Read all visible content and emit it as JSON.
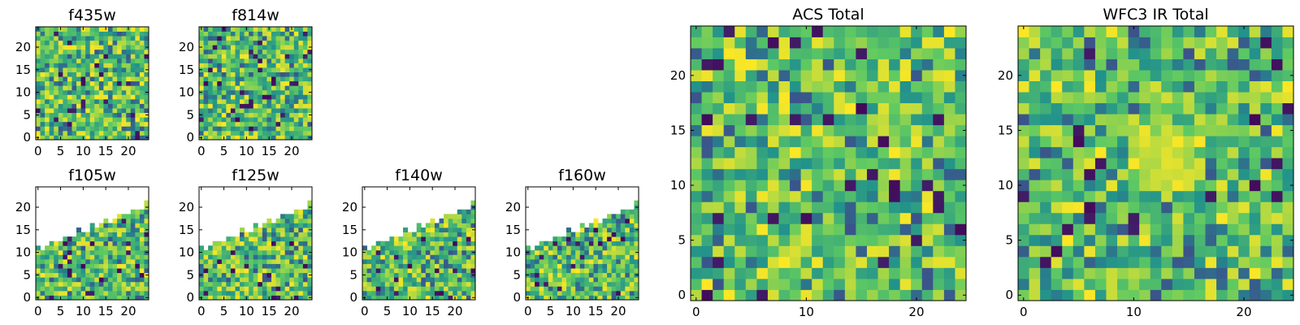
{
  "chart_data": [
    {
      "type": "heatmap",
      "title": "f435w",
      "grid": [
        25,
        25
      ],
      "xticks": [
        "0",
        "5",
        "10",
        "15",
        "20"
      ],
      "yticks": [
        "0",
        "5",
        "10",
        "15",
        "20"
      ],
      "xlim": [
        0,
        25
      ],
      "ylim": [
        0,
        25
      ],
      "colormap": "viridis",
      "coverage": "full"
    },
    {
      "type": "heatmap",
      "title": "f814w",
      "grid": [
        25,
        25
      ],
      "xticks": [
        "0",
        "5",
        "10",
        "15",
        "20"
      ],
      "yticks": [
        "0",
        "5",
        "10",
        "15",
        "20"
      ],
      "xlim": [
        0,
        25
      ],
      "ylim": [
        0,
        25
      ],
      "colormap": "viridis",
      "coverage": "full"
    },
    {
      "type": "heatmap",
      "title": "f105w",
      "grid": [
        25,
        25
      ],
      "xticks": [
        "0",
        "5",
        "10",
        "15",
        "20"
      ],
      "yticks": [
        "0",
        "5",
        "10",
        "15",
        "20"
      ],
      "xlim": [
        0,
        25
      ],
      "ylim": [
        0,
        25
      ],
      "colormap": "viridis",
      "coverage": "lower-diagonal"
    },
    {
      "type": "heatmap",
      "title": "f125w",
      "grid": [
        25,
        25
      ],
      "xticks": [
        "0",
        "5",
        "10",
        "15",
        "20"
      ],
      "yticks": [
        "0",
        "5",
        "10",
        "15",
        "20"
      ],
      "xlim": [
        0,
        25
      ],
      "ylim": [
        0,
        25
      ],
      "colormap": "viridis",
      "coverage": "lower-diagonal"
    },
    {
      "type": "heatmap",
      "title": "f140w",
      "grid": [
        25,
        25
      ],
      "xticks": [
        "0",
        "5",
        "10",
        "15",
        "20"
      ],
      "yticks": [
        "0",
        "5",
        "10",
        "15",
        "20"
      ],
      "xlim": [
        0,
        25
      ],
      "ylim": [
        0,
        25
      ],
      "colormap": "viridis",
      "coverage": "lower-diagonal"
    },
    {
      "type": "heatmap",
      "title": "f160w",
      "grid": [
        25,
        25
      ],
      "xticks": [
        "0",
        "5",
        "10",
        "15",
        "20"
      ],
      "yticks": [
        "0",
        "5",
        "10",
        "15",
        "20"
      ],
      "xlim": [
        0,
        25
      ],
      "ylim": [
        0,
        25
      ],
      "colormap": "viridis",
      "coverage": "lower-diagonal"
    },
    {
      "type": "heatmap",
      "title": "ACS Total",
      "grid": [
        25,
        25
      ],
      "xticks": [
        "0",
        "10",
        "20"
      ],
      "yticks": [
        "0",
        "5",
        "10",
        "15",
        "20"
      ],
      "xlim": [
        0,
        25
      ],
      "ylim": [
        0,
        25
      ],
      "colormap": "viridis",
      "coverage": "full"
    },
    {
      "type": "heatmap",
      "title": "WFC3 IR Total",
      "grid": [
        25,
        25
      ],
      "xticks": [
        "0",
        "10",
        "20"
      ],
      "yticks": [
        "0",
        "5",
        "10",
        "15",
        "20"
      ],
      "xlim": [
        0,
        25
      ],
      "ylim": [
        0,
        25
      ],
      "colormap": "viridis",
      "coverage": "full"
    }
  ],
  "colors": {
    "viridis_stops": [
      "#440154",
      "#3b528b",
      "#21918c",
      "#5ec962",
      "#fde725"
    ]
  }
}
